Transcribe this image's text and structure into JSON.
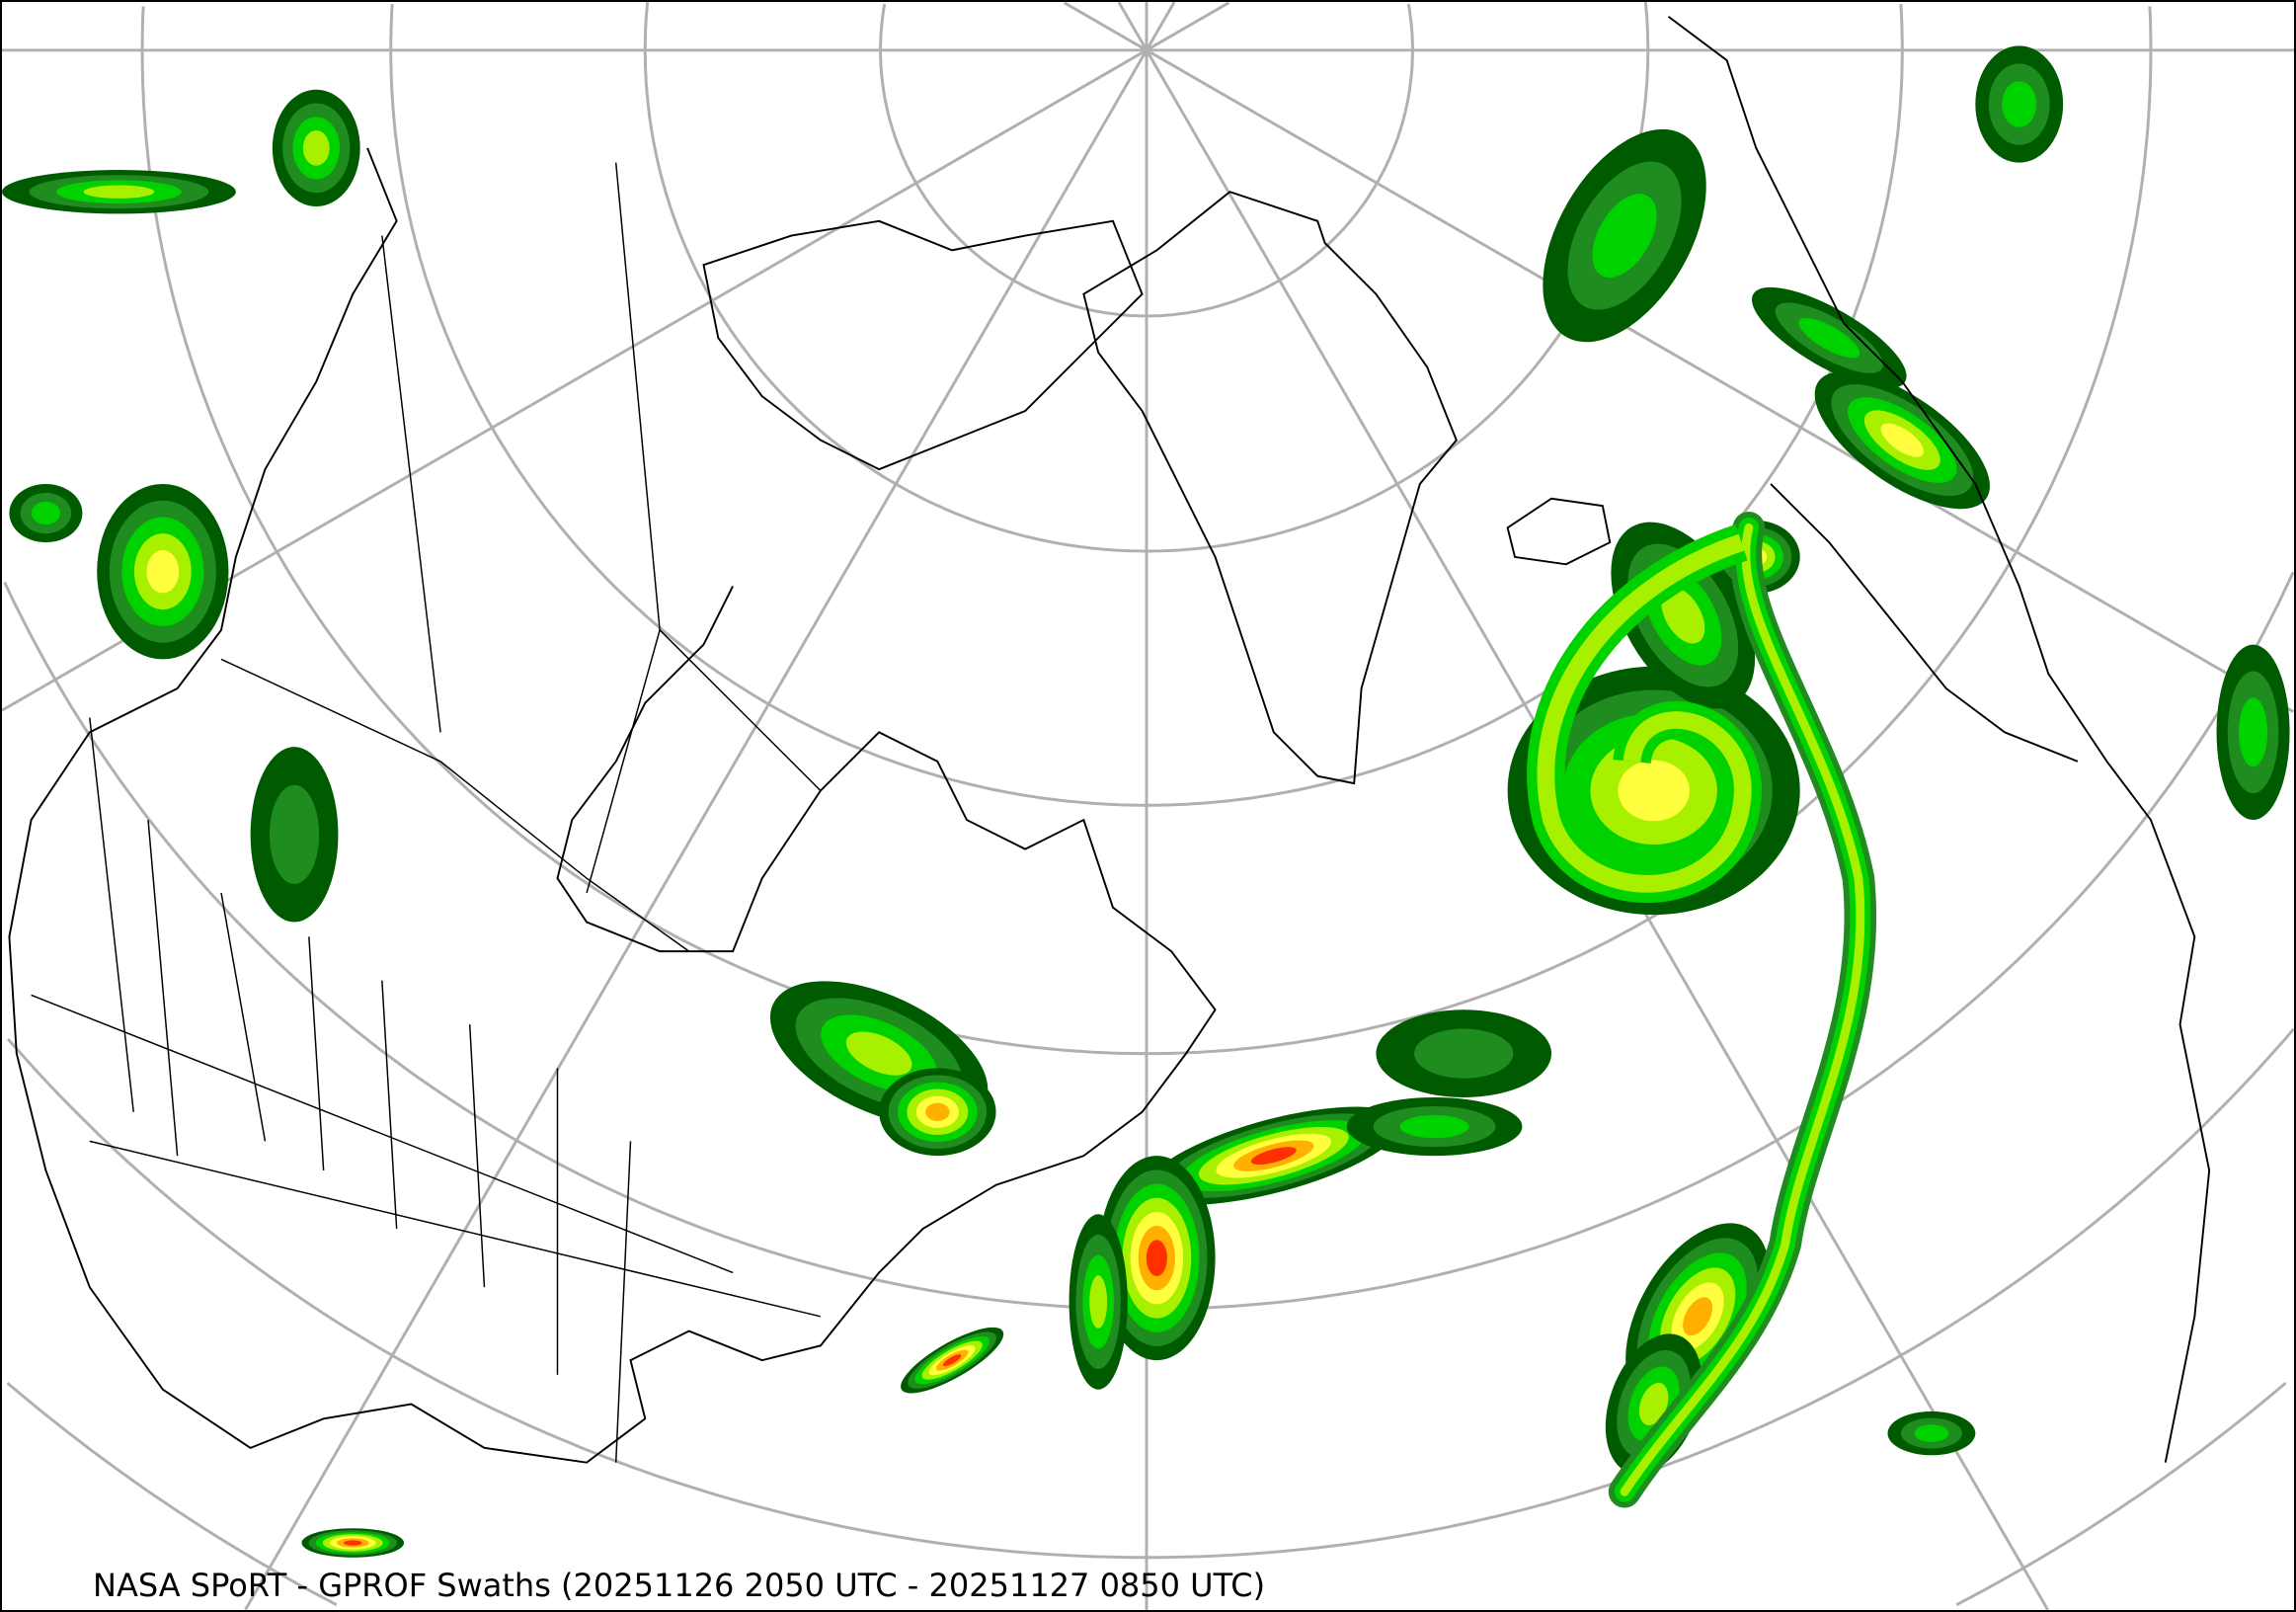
{
  "caption": "NASA SPoRT - GPROF Swaths (20251126 2050 UTC - 20251127 0850 UTC)",
  "colors": {
    "graticule": "#b0b0b0",
    "coastline": "#000000",
    "precip_levels": [
      "#005a00",
      "#1e8c1e",
      "#00d200",
      "#a6f000",
      "#ffff40",
      "#ffb000",
      "#ff3000",
      "#c00000"
    ]
  },
  "map": {
    "projection": "polar stereographic (north)",
    "layers": [
      "graticule",
      "coastlines",
      "political borders",
      "GPROF precipitation swaths"
    ]
  }
}
